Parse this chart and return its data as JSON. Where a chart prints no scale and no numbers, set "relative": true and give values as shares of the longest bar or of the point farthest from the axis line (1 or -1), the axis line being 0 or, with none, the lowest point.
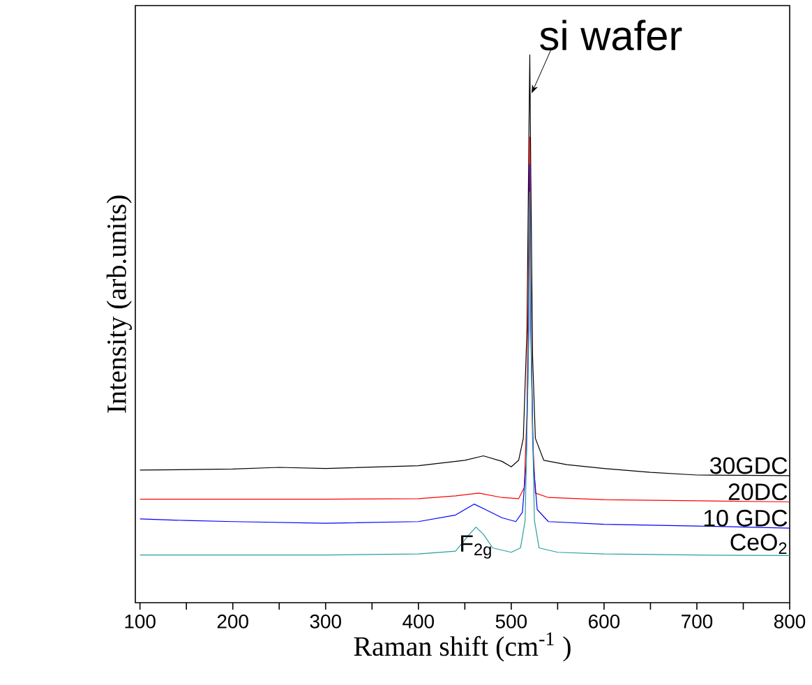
{
  "chart_data": {
    "type": "line",
    "relative": true,
    "xlabel": "Raman shift (cm$^{-1}$ )",
    "ylabel": "Intensity (arb.units)",
    "xlim": [
      95,
      800
    ],
    "xticks": [
      100,
      {
        "value": 150,
        "label": null
      },
      200,
      {
        "value": 250,
        "label": null
      },
      300,
      {
        "value": 350,
        "label": null
      },
      400,
      {
        "value": 450,
        "label": null
      },
      500,
      {
        "value": 550,
        "label": null
      },
      600,
      {
        "value": 650,
        "label": null
      },
      700,
      {
        "value": 750,
        "label": null
      },
      800
    ],
    "tick_labels": "x",
    "marker": "none",
    "line_style": "solid",
    "series": [
      {
        "name": "30GDC",
        "color": "#000000",
        "x": [
          100,
          200,
          250,
          300,
          400,
          450,
          470,
          490,
          500,
          508,
          513,
          517,
          519,
          520,
          521,
          523,
          526,
          535,
          560,
          600,
          650,
          700,
          800
        ],
        "values": [
          0.242,
          0.244,
          0.247,
          0.245,
          0.25,
          0.26,
          0.268,
          0.258,
          0.248,
          0.26,
          0.3,
          0.5,
          0.85,
          1.0,
          0.8,
          0.45,
          0.3,
          0.26,
          0.252,
          0.245,
          0.238,
          0.233,
          0.232
        ]
      },
      {
        "name": "20DC",
        "color": "#ff0000",
        "x": [
          100,
          200,
          300,
          400,
          440,
          465,
          490,
          508,
          514,
          517,
          519,
          520,
          521,
          523,
          526,
          540,
          600,
          700,
          800
        ],
        "values": [
          0.189,
          0.189,
          0.189,
          0.19,
          0.195,
          0.2,
          0.192,
          0.19,
          0.21,
          0.35,
          0.7,
          0.85,
          0.6,
          0.3,
          0.2,
          0.192,
          0.188,
          0.186,
          0.184
        ]
      },
      {
        "name": "10 GDC",
        "color": "#0000ff",
        "x": [
          100,
          150,
          200,
          300,
          400,
          440,
          460,
          470,
          490,
          505,
          512,
          516,
          519,
          520,
          521,
          524,
          528,
          540,
          600,
          700,
          800
        ],
        "values": [
          0.153,
          0.15,
          0.148,
          0.145,
          0.148,
          0.16,
          0.18,
          0.172,
          0.155,
          0.148,
          0.165,
          0.25,
          0.5,
          0.8,
          0.5,
          0.25,
          0.17,
          0.148,
          0.143,
          0.14,
          0.136
        ]
      },
      {
        "name": "CeO$_{2}$",
        "color": "#26a09a",
        "x": [
          100,
          200,
          300,
          400,
          440,
          455,
          462,
          470,
          480,
          500,
          510,
          515,
          518,
          520,
          522,
          525,
          530,
          550,
          600,
          700,
          800
        ],
        "values": [
          0.087,
          0.087,
          0.087,
          0.089,
          0.094,
          0.125,
          0.138,
          0.125,
          0.1,
          0.092,
          0.1,
          0.15,
          0.4,
          0.75,
          0.4,
          0.15,
          0.1,
          0.092,
          0.089,
          0.087,
          0.086
        ]
      }
    ],
    "annotations": [
      {
        "text": "si wafer",
        "x": 520,
        "y": 1.0
      },
      {
        "text": "F$_{2g}$",
        "x": 462,
        "y": 0.138
      }
    ]
  }
}
